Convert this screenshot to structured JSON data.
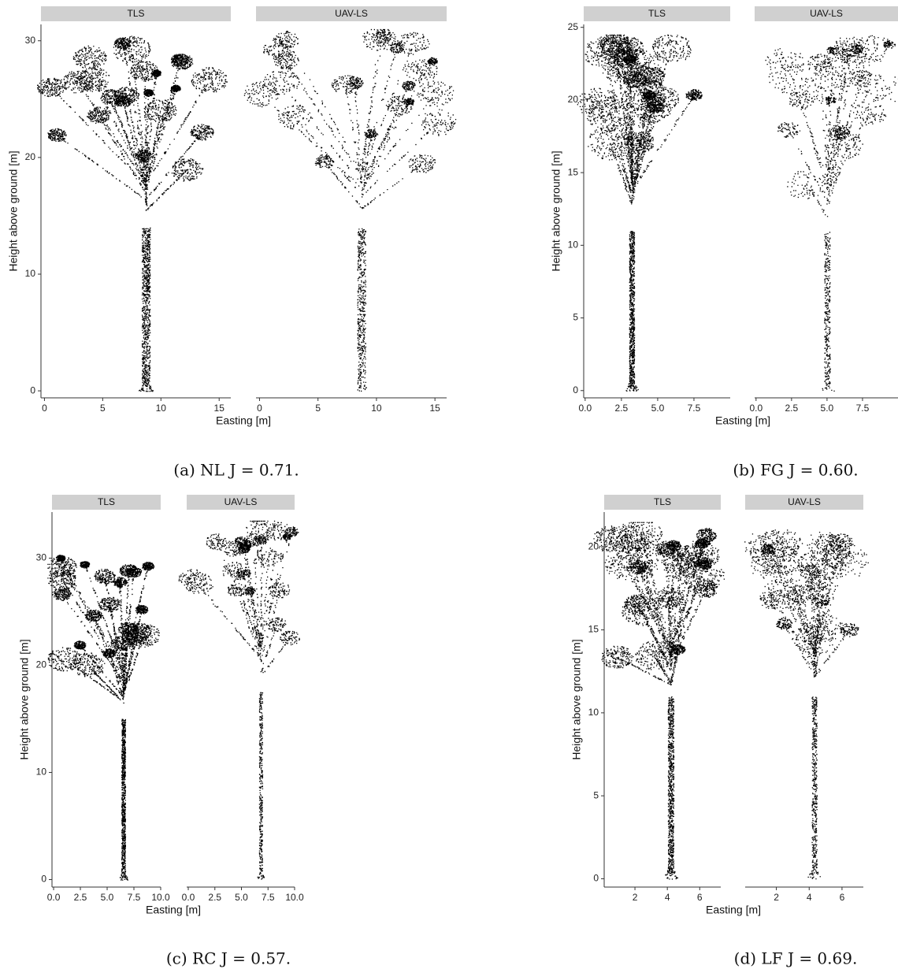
{
  "chart_data": [
    {
      "type": "point-cloud",
      "facets": [
        "TLS",
        "UAV-LS"
      ],
      "xlabel": "Easting [m]",
      "ylabel": "Height above ground [m]",
      "xlim": [
        -0.3,
        16
      ],
      "ylim": [
        -0.6,
        31.4
      ],
      "xticks": [
        0,
        5,
        10,
        15
      ],
      "yticks": [
        0,
        10,
        20,
        30
      ],
      "caption": "(a) NL J = 0.71."
    },
    {
      "type": "point-cloud",
      "facets": [
        "TLS",
        "UAV-LS"
      ],
      "xlabel": "Easting [m]",
      "ylabel": "Height above ground [m]",
      "xlim": [
        -0.1,
        10
      ],
      "ylim": [
        -0.5,
        25.2
      ],
      "xticks": [
        {
          "value": 0,
          "label": "0.0"
        },
        {
          "value": 2.5,
          "label": "2.5"
        },
        {
          "value": 5,
          "label": "5.0"
        },
        {
          "value": 7.5,
          "label": "7.5"
        }
      ],
      "yticks": [
        0,
        5,
        10,
        15,
        20,
        25
      ],
      "caption": "(b) FG J = 0.60."
    },
    {
      "type": "point-cloud",
      "facets": [
        "TLS",
        "UAV-LS"
      ],
      "xlabel": "Easting [m]",
      "ylabel": "Height above ground [m]",
      "xlim": [
        -0.15,
        10
      ],
      "ylim": [
        -0.7,
        34.3
      ],
      "xticks": [
        {
          "value": 0,
          "label": "0.0"
        },
        {
          "value": 2.5,
          "label": "2.5"
        },
        {
          "value": 5,
          "label": "5.0"
        },
        {
          "value": 7.5,
          "label": "7.5"
        },
        {
          "value": 10,
          "label": "10.0"
        }
      ],
      "yticks": [
        0,
        10,
        20,
        30
      ],
      "caption": "(c) RC J = 0.57."
    },
    {
      "type": "point-cloud",
      "facets": [
        "TLS",
        "UAV-LS"
      ],
      "xlabel": "Easting [m]",
      "ylabel": "Height above ground [m]",
      "xlim": [
        0.1,
        7.3
      ],
      "ylim": [
        -0.5,
        22.1
      ],
      "xticks": [
        2,
        4,
        6
      ],
      "yticks": [
        0,
        5,
        10,
        15,
        20
      ],
      "caption": "(d) LF J = 0.69."
    }
  ]
}
